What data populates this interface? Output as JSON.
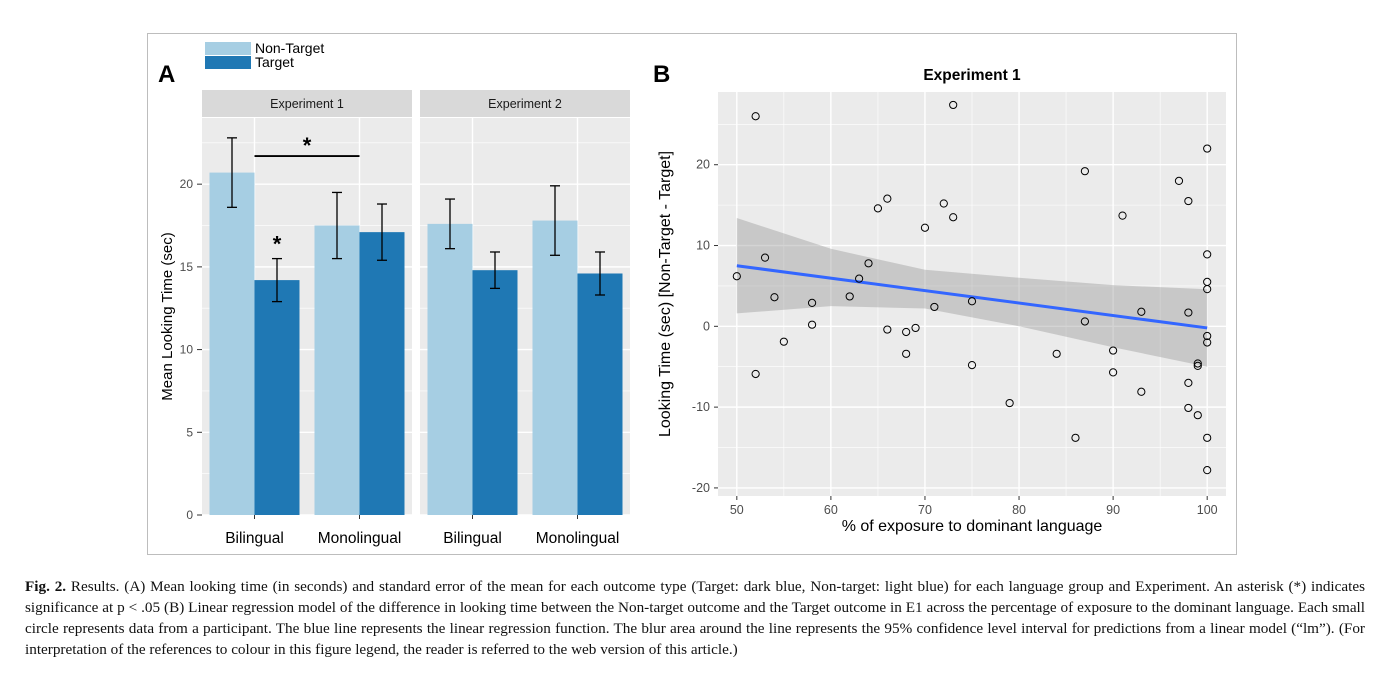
{
  "figure": {
    "panel_a_label": "A",
    "panel_b_label": "B",
    "caption_label": "Fig. 2.",
    "caption_text": "Results. (A) Mean looking time (in seconds) and standard error of the mean for each outcome type (Target: dark blue, Non-target: light blue) for each language group and Experiment. An asterisk (*) indicates significance at p  <  .05 (B) Linear regression model of the difference in looking time between the Non-target outcome and the Target outcome in E1 across the percentage of exposure to the dominant language. Each small circle represents data from a participant. The blue line represents the linear regression function. The blur area around the line represents the 95% confidence level interval for predictions from a linear model (“lm”). (For interpretation of the references to colour in this figure legend, the reader is referred to the web version of this article.)"
  },
  "chart_data": [
    {
      "type": "bar",
      "panel": "A",
      "title": "",
      "xlabel": "",
      "ylabel": "Mean Looking Time (sec)",
      "ylim": [
        0,
        24
      ],
      "yticks": [
        0,
        5,
        10,
        15,
        20
      ],
      "grid": true,
      "legend": {
        "placement": "top-left",
        "entries": [
          "Non-Target",
          "Target"
        ]
      },
      "colors": {
        "Non-Target": "#a6cee3",
        "Target": "#1f78b4"
      },
      "facets": [
        {
          "strip_label": "Experiment 1",
          "categories": [
            "Bilingual",
            "Monolingual"
          ],
          "series": [
            {
              "name": "Non-Target",
              "values": [
                20.7,
                17.5
              ],
              "error": [
                2.1,
                2.0
              ]
            },
            {
              "name": "Target",
              "values": [
                14.2,
                17.1
              ],
              "error": [
                1.3,
                1.7
              ]
            }
          ],
          "annotations": [
            {
              "text": "*",
              "kind": "bracket",
              "between": [
                "Bilingual",
                "Monolingual"
              ],
              "at_value": 21.7
            },
            {
              "text": "*",
              "kind": "bar",
              "category": "Bilingual",
              "series": "Target",
              "at_value": 16.6
            }
          ]
        },
        {
          "strip_label": "Experiment 2",
          "categories": [
            "Bilingual",
            "Monolingual"
          ],
          "series": [
            {
              "name": "Non-Target",
              "values": [
                17.6,
                17.8
              ],
              "error": [
                1.5,
                2.1
              ]
            },
            {
              "name": "Target",
              "values": [
                14.8,
                14.6
              ],
              "error": [
                1.1,
                1.3
              ]
            }
          ],
          "annotations": []
        }
      ]
    },
    {
      "type": "scatter",
      "panel": "B",
      "title": "Experiment 1",
      "xlabel": "% of exposure to dominant language",
      "ylabel": "Looking Time (sec) [Non-Target - Target]",
      "xlim": [
        48,
        102
      ],
      "ylim": [
        -21,
        29
      ],
      "xticks": [
        50,
        60,
        70,
        80,
        90,
        100
      ],
      "yticks": [
        -20,
        -10,
        0,
        10,
        20
      ],
      "grid": true,
      "regression": {
        "x": [
          50,
          100
        ],
        "y": [
          7.5,
          -0.2
        ],
        "color": "#3366ff"
      },
      "confidence_band": {
        "x": [
          50,
          60,
          70,
          80,
          90,
          100
        ],
        "lower": [
          1.6,
          2.5,
          2.2,
          0.0,
          -2.6,
          -5.0
        ],
        "upper": [
          13.4,
          9.6,
          7.0,
          6.0,
          5.1,
          4.6
        ]
      },
      "points": [
        [
          50,
          6.2
        ],
        [
          52,
          26.0
        ],
        [
          52,
          -5.9
        ],
        [
          53,
          8.5
        ],
        [
          54,
          3.6
        ],
        [
          55,
          -1.9
        ],
        [
          58,
          2.9
        ],
        [
          58,
          0.2
        ],
        [
          62,
          3.7
        ],
        [
          63,
          5.9
        ],
        [
          64,
          7.8
        ],
        [
          65,
          14.6
        ],
        [
          66,
          15.8
        ],
        [
          66,
          -0.4
        ],
        [
          68,
          -0.7
        ],
        [
          68,
          -3.4
        ],
        [
          69,
          -0.2
        ],
        [
          70,
          12.2
        ],
        [
          71,
          2.4
        ],
        [
          72,
          15.2
        ],
        [
          73,
          27.4
        ],
        [
          73,
          13.5
        ],
        [
          75,
          3.1
        ],
        [
          75,
          -4.8
        ],
        [
          79,
          -9.5
        ],
        [
          84,
          -3.4
        ],
        [
          86,
          -13.8
        ],
        [
          87,
          19.2
        ],
        [
          87,
          0.6
        ],
        [
          90,
          -3.0
        ],
        [
          90,
          -5.7
        ],
        [
          91,
          13.7
        ],
        [
          93,
          1.8
        ],
        [
          93,
          -8.1
        ],
        [
          97,
          18.0
        ],
        [
          98,
          15.5
        ],
        [
          98,
          1.7
        ],
        [
          98,
          -7.0
        ],
        [
          98,
          -10.1
        ],
        [
          99,
          -4.6
        ],
        [
          99,
          -4.9
        ],
        [
          99,
          -11.0
        ],
        [
          100,
          22.0
        ],
        [
          100,
          8.9
        ],
        [
          100,
          5.5
        ],
        [
          100,
          4.6
        ],
        [
          100,
          -1.2
        ],
        [
          100,
          -2.0
        ],
        [
          100,
          -13.8
        ],
        [
          100,
          -17.8
        ]
      ]
    }
  ]
}
